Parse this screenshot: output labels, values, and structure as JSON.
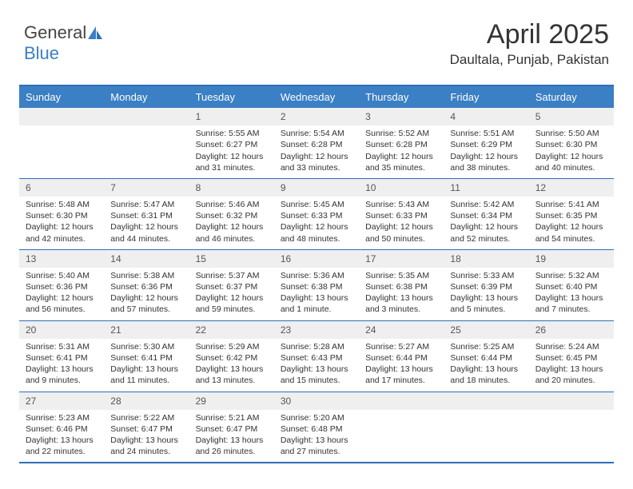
{
  "logo": {
    "text1": "General",
    "text2": "Blue"
  },
  "header": {
    "month": "April 2025",
    "location": "Daultala, Punjab, Pakistan"
  },
  "colors": {
    "header_bg": "#3b7fc4",
    "header_text": "#ffffff",
    "border": "#2d6fba",
    "daynum_bg": "#efefef",
    "text": "#333333"
  },
  "dayNames": [
    "Sunday",
    "Monday",
    "Tuesday",
    "Wednesday",
    "Thursday",
    "Friday",
    "Saturday"
  ],
  "weeks": [
    [
      {
        "n": "",
        "sr": "",
        "ss": "",
        "dl": ""
      },
      {
        "n": "",
        "sr": "",
        "ss": "",
        "dl": ""
      },
      {
        "n": "1",
        "sr": "Sunrise: 5:55 AM",
        "ss": "Sunset: 6:27 PM",
        "dl": "Daylight: 12 hours and 31 minutes."
      },
      {
        "n": "2",
        "sr": "Sunrise: 5:54 AM",
        "ss": "Sunset: 6:28 PM",
        "dl": "Daylight: 12 hours and 33 minutes."
      },
      {
        "n": "3",
        "sr": "Sunrise: 5:52 AM",
        "ss": "Sunset: 6:28 PM",
        "dl": "Daylight: 12 hours and 35 minutes."
      },
      {
        "n": "4",
        "sr": "Sunrise: 5:51 AM",
        "ss": "Sunset: 6:29 PM",
        "dl": "Daylight: 12 hours and 38 minutes."
      },
      {
        "n": "5",
        "sr": "Sunrise: 5:50 AM",
        "ss": "Sunset: 6:30 PM",
        "dl": "Daylight: 12 hours and 40 minutes."
      }
    ],
    [
      {
        "n": "6",
        "sr": "Sunrise: 5:48 AM",
        "ss": "Sunset: 6:30 PM",
        "dl": "Daylight: 12 hours and 42 minutes."
      },
      {
        "n": "7",
        "sr": "Sunrise: 5:47 AM",
        "ss": "Sunset: 6:31 PM",
        "dl": "Daylight: 12 hours and 44 minutes."
      },
      {
        "n": "8",
        "sr": "Sunrise: 5:46 AM",
        "ss": "Sunset: 6:32 PM",
        "dl": "Daylight: 12 hours and 46 minutes."
      },
      {
        "n": "9",
        "sr": "Sunrise: 5:45 AM",
        "ss": "Sunset: 6:33 PM",
        "dl": "Daylight: 12 hours and 48 minutes."
      },
      {
        "n": "10",
        "sr": "Sunrise: 5:43 AM",
        "ss": "Sunset: 6:33 PM",
        "dl": "Daylight: 12 hours and 50 minutes."
      },
      {
        "n": "11",
        "sr": "Sunrise: 5:42 AM",
        "ss": "Sunset: 6:34 PM",
        "dl": "Daylight: 12 hours and 52 minutes."
      },
      {
        "n": "12",
        "sr": "Sunrise: 5:41 AM",
        "ss": "Sunset: 6:35 PM",
        "dl": "Daylight: 12 hours and 54 minutes."
      }
    ],
    [
      {
        "n": "13",
        "sr": "Sunrise: 5:40 AM",
        "ss": "Sunset: 6:36 PM",
        "dl": "Daylight: 12 hours and 56 minutes."
      },
      {
        "n": "14",
        "sr": "Sunrise: 5:38 AM",
        "ss": "Sunset: 6:36 PM",
        "dl": "Daylight: 12 hours and 57 minutes."
      },
      {
        "n": "15",
        "sr": "Sunrise: 5:37 AM",
        "ss": "Sunset: 6:37 PM",
        "dl": "Daylight: 12 hours and 59 minutes."
      },
      {
        "n": "16",
        "sr": "Sunrise: 5:36 AM",
        "ss": "Sunset: 6:38 PM",
        "dl": "Daylight: 13 hours and 1 minute."
      },
      {
        "n": "17",
        "sr": "Sunrise: 5:35 AM",
        "ss": "Sunset: 6:38 PM",
        "dl": "Daylight: 13 hours and 3 minutes."
      },
      {
        "n": "18",
        "sr": "Sunrise: 5:33 AM",
        "ss": "Sunset: 6:39 PM",
        "dl": "Daylight: 13 hours and 5 minutes."
      },
      {
        "n": "19",
        "sr": "Sunrise: 5:32 AM",
        "ss": "Sunset: 6:40 PM",
        "dl": "Daylight: 13 hours and 7 minutes."
      }
    ],
    [
      {
        "n": "20",
        "sr": "Sunrise: 5:31 AM",
        "ss": "Sunset: 6:41 PM",
        "dl": "Daylight: 13 hours and 9 minutes."
      },
      {
        "n": "21",
        "sr": "Sunrise: 5:30 AM",
        "ss": "Sunset: 6:41 PM",
        "dl": "Daylight: 13 hours and 11 minutes."
      },
      {
        "n": "22",
        "sr": "Sunrise: 5:29 AM",
        "ss": "Sunset: 6:42 PM",
        "dl": "Daylight: 13 hours and 13 minutes."
      },
      {
        "n": "23",
        "sr": "Sunrise: 5:28 AM",
        "ss": "Sunset: 6:43 PM",
        "dl": "Daylight: 13 hours and 15 minutes."
      },
      {
        "n": "24",
        "sr": "Sunrise: 5:27 AM",
        "ss": "Sunset: 6:44 PM",
        "dl": "Daylight: 13 hours and 17 minutes."
      },
      {
        "n": "25",
        "sr": "Sunrise: 5:25 AM",
        "ss": "Sunset: 6:44 PM",
        "dl": "Daylight: 13 hours and 18 minutes."
      },
      {
        "n": "26",
        "sr": "Sunrise: 5:24 AM",
        "ss": "Sunset: 6:45 PM",
        "dl": "Daylight: 13 hours and 20 minutes."
      }
    ],
    [
      {
        "n": "27",
        "sr": "Sunrise: 5:23 AM",
        "ss": "Sunset: 6:46 PM",
        "dl": "Daylight: 13 hours and 22 minutes."
      },
      {
        "n": "28",
        "sr": "Sunrise: 5:22 AM",
        "ss": "Sunset: 6:47 PM",
        "dl": "Daylight: 13 hours and 24 minutes."
      },
      {
        "n": "29",
        "sr": "Sunrise: 5:21 AM",
        "ss": "Sunset: 6:47 PM",
        "dl": "Daylight: 13 hours and 26 minutes."
      },
      {
        "n": "30",
        "sr": "Sunrise: 5:20 AM",
        "ss": "Sunset: 6:48 PM",
        "dl": "Daylight: 13 hours and 27 minutes."
      },
      {
        "n": "",
        "sr": "",
        "ss": "",
        "dl": ""
      },
      {
        "n": "",
        "sr": "",
        "ss": "",
        "dl": ""
      },
      {
        "n": "",
        "sr": "",
        "ss": "",
        "dl": ""
      }
    ]
  ]
}
